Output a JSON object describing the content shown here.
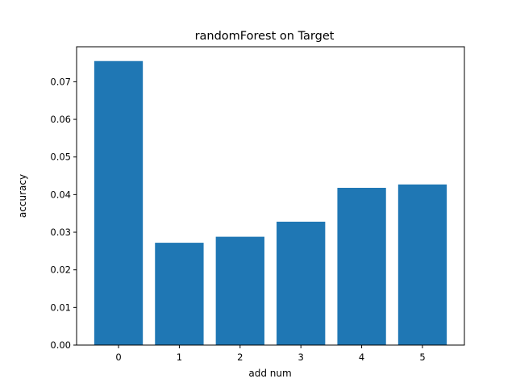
{
  "chart_data": {
    "type": "bar",
    "title": "randomForest on Target",
    "xlabel": "add num",
    "ylabel": "accuracy",
    "categories": [
      "0",
      "1",
      "2",
      "3",
      "4",
      "5"
    ],
    "values": [
      0.0755,
      0.0272,
      0.0288,
      0.0328,
      0.0418,
      0.0427
    ],
    "ylim": [
      0,
      0.0793
    ],
    "yticks": [
      "0.00",
      "0.01",
      "0.02",
      "0.03",
      "0.04",
      "0.05",
      "0.06",
      "0.07"
    ],
    "bar_color": "#1f77b4",
    "grid": false,
    "legend": "none"
  }
}
